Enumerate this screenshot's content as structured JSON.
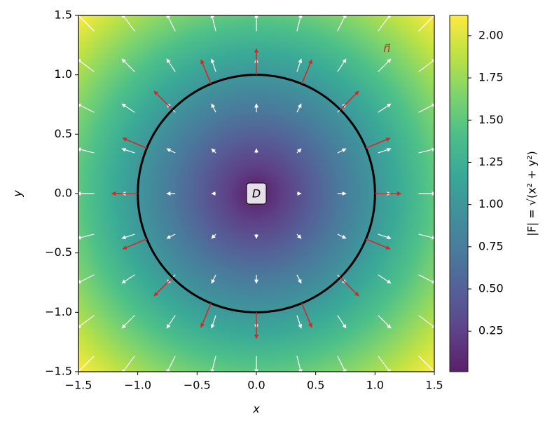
{
  "chart_data": {
    "type": "quiver",
    "xlabel": "x",
    "ylabel": "y",
    "xlim": [
      -1.5,
      1.5
    ],
    "ylim": [
      -1.5,
      1.5
    ],
    "xticks": [
      {
        "value": -1.5,
        "label": "−1.5"
      },
      {
        "value": -1.0,
        "label": "−1.0"
      },
      {
        "value": -0.5,
        "label": "−0.5"
      },
      {
        "value": 0.0,
        "label": "0.0"
      },
      0.5,
      {
        "value": 1.0,
        "label": "1.0"
      },
      1.5
    ],
    "yticks": [
      {
        "value": -1.5,
        "label": "−1.5"
      },
      {
        "value": -1.0,
        "label": "−1.0"
      },
      {
        "value": -0.5,
        "label": "−0.5"
      },
      {
        "value": 0.0,
        "label": "0.0"
      },
      0.5,
      {
        "value": 1.0,
        "label": "1.0"
      },
      1.5
    ],
    "colormap": "viridis",
    "clim": [
      0.01,
      2.12
    ],
    "colorbar_label": "|F| = √(x² + y²)",
    "colorbar_ticks": [
      0.25,
      {
        "value": 0.5,
        "label": "0.50"
      },
      0.75,
      {
        "value": 1.0,
        "label": "1.00"
      },
      1.25,
      {
        "value": 1.5,
        "label": "1.50"
      },
      1.75,
      {
        "value": 2.0,
        "label": "2.00"
      }
    ],
    "quiver": {
      "grid": [
        -1.44,
        -1.08,
        -0.72,
        -0.36,
        0,
        0.36,
        0.72,
        1.08,
        1.44
      ],
      "color": "#ffffff"
    },
    "circle_radius": 1,
    "circle_color": "#000000",
    "normals": {
      "angles": [
        0,
        22.5,
        45,
        67.5,
        90,
        112.5,
        135,
        157.5,
        180,
        202.5,
        225,
        247.5,
        270,
        292.5,
        315,
        337.5
      ],
      "color": "#d62728"
    },
    "region_label": "D",
    "normal_label": "n⃗"
  }
}
